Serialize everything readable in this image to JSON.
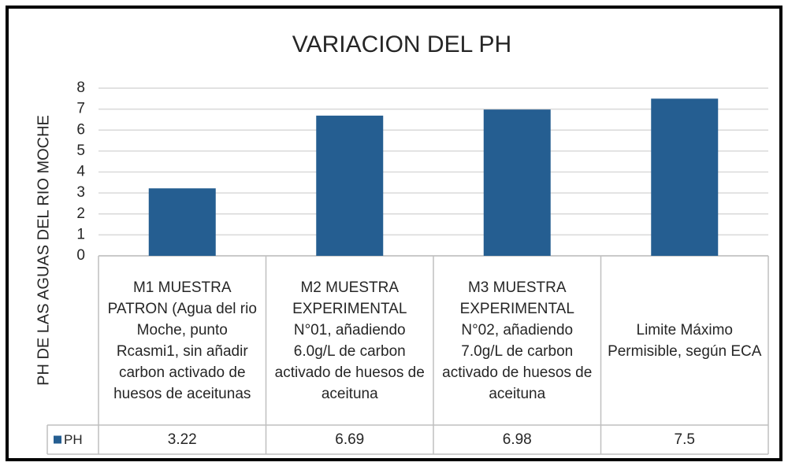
{
  "chart_data": {
    "type": "bar",
    "title": "VARIACION DEL PH",
    "y_label": "PH DE  LAS  AGUAS DEL RIO MOCHE",
    "categories": [
      "M1 MUESTRA PATRON (Agua del rio  Moche, punto Rcasmi1, sin añadir carbon activado de huesos de aceitunas",
      "M2 MUESTRA EXPERIMENTAL N°01, añadiendo 6.0g/L de carbon activado de huesos de aceituna",
      "M3 MUESTRA EXPERIMENTAL N°02, añadiendo 7.0g/L de carbon activado de huesos de aceituna",
      "Limite Máximo Permisible, según ECA"
    ],
    "series": [
      {
        "name": "PH",
        "color": "#255e91",
        "values": [
          3.22,
          6.69,
          6.98,
          7.5
        ]
      }
    ],
    "ylim": [
      0,
      8
    ],
    "yticks": [
      0,
      1,
      2,
      3,
      4,
      5,
      6,
      7,
      8
    ],
    "grid": true
  }
}
